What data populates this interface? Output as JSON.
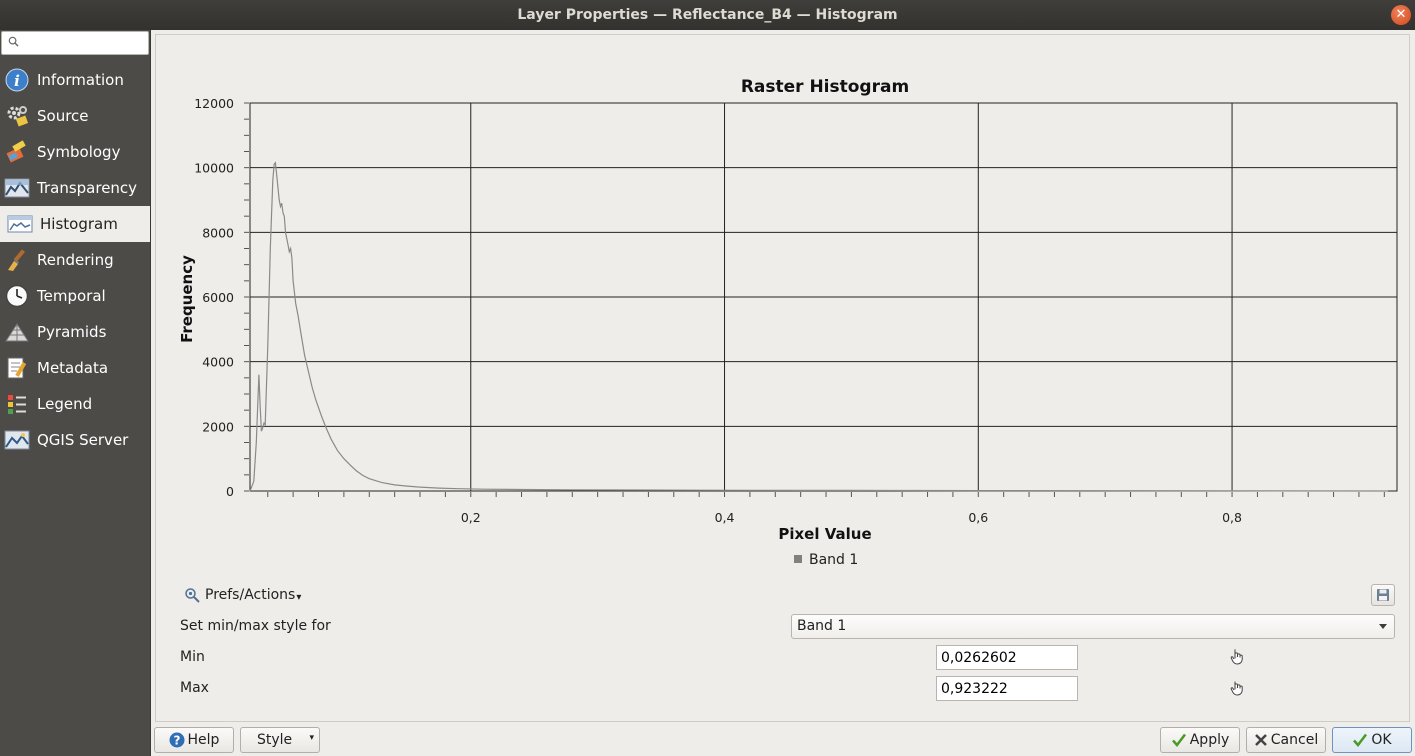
{
  "window": {
    "title": "Layer Properties — Reflectance_B4 — Histogram"
  },
  "search": {
    "placeholder": ""
  },
  "sidebar": {
    "items": [
      {
        "label": "Information",
        "icon": "info-icon"
      },
      {
        "label": "Source",
        "icon": "source-icon"
      },
      {
        "label": "Symbology",
        "icon": "symbology-icon"
      },
      {
        "label": "Transparency",
        "icon": "transparency-icon"
      },
      {
        "label": "Histogram",
        "icon": "histogram-icon",
        "active": true
      },
      {
        "label": "Rendering",
        "icon": "rendering-brush-icon"
      },
      {
        "label": "Temporal",
        "icon": "clock-icon"
      },
      {
        "label": "Pyramids",
        "icon": "pyramids-icon"
      },
      {
        "label": "Metadata",
        "icon": "metadata-icon"
      },
      {
        "label": "Legend",
        "icon": "legend-icon"
      },
      {
        "label": "QGIS Server",
        "icon": "qgis-server-icon"
      }
    ]
  },
  "chart_data": {
    "type": "line",
    "title": "Raster Histogram",
    "xlabel": "Pixel Value",
    "ylabel": "Frequency",
    "xlim": [
      0.026,
      0.93
    ],
    "ylim": [
      0,
      12000
    ],
    "x_ticks": [
      "0,2",
      "0,4",
      "0,6",
      "0,8"
    ],
    "x_tick_values": [
      0.2,
      0.4,
      0.6,
      0.8
    ],
    "y_ticks": [
      "0",
      "2000",
      "4000",
      "6000",
      "8000",
      "10000",
      "12000"
    ],
    "y_tick_values": [
      0,
      2000,
      4000,
      6000,
      8000,
      10000,
      12000
    ],
    "grid": true,
    "legend_position": "bottom-center",
    "series": [
      {
        "name": "Band 1",
        "color": "#8a8a8a",
        "x": [
          0.026,
          0.029,
          0.031,
          0.033,
          0.034,
          0.035,
          0.036,
          0.037,
          0.038,
          0.04,
          0.042,
          0.044,
          0.045,
          0.046,
          0.047,
          0.048,
          0.049,
          0.05,
          0.051,
          0.052,
          0.053,
          0.054,
          0.055,
          0.056,
          0.057,
          0.058,
          0.059,
          0.06,
          0.062,
          0.064,
          0.066,
          0.069,
          0.072,
          0.075,
          0.078,
          0.082,
          0.086,
          0.09,
          0.095,
          0.1,
          0.105,
          0.11,
          0.115,
          0.12,
          0.13,
          0.14,
          0.15,
          0.16,
          0.175,
          0.19,
          0.21,
          0.24,
          0.28,
          0.33,
          0.38,
          0.42,
          0.46,
          0.5,
          0.55,
          0.6,
          0.7,
          0.8,
          0.923
        ],
        "values": [
          0,
          300,
          1500,
          3600,
          2600,
          1850,
          1950,
          2100,
          2050,
          4500,
          7500,
          9600,
          10100,
          10150,
          9800,
          9400,
          9000,
          8800,
          8900,
          8600,
          8500,
          8000,
          7800,
          7600,
          7400,
          7500,
          7200,
          6500,
          5800,
          5400,
          4900,
          4200,
          3700,
          3200,
          2800,
          2350,
          1950,
          1600,
          1250,
          1000,
          800,
          620,
          480,
          380,
          260,
          190,
          150,
          120,
          90,
          70,
          55,
          45,
          35,
          30,
          25,
          22,
          20,
          18,
          15,
          12,
          8,
          5,
          0
        ]
      }
    ]
  },
  "prefs": {
    "label": "Prefs/Actions"
  },
  "form": {
    "style_label": "Set min/max style for",
    "band_value": "Band 1",
    "min_label": "Min",
    "min_value": "0,0262602",
    "max_label": "Max",
    "max_value": "0,923222"
  },
  "buttons": {
    "help": "Help",
    "style": "Style",
    "apply": "Apply",
    "cancel": "Cancel",
    "ok": "OK"
  }
}
